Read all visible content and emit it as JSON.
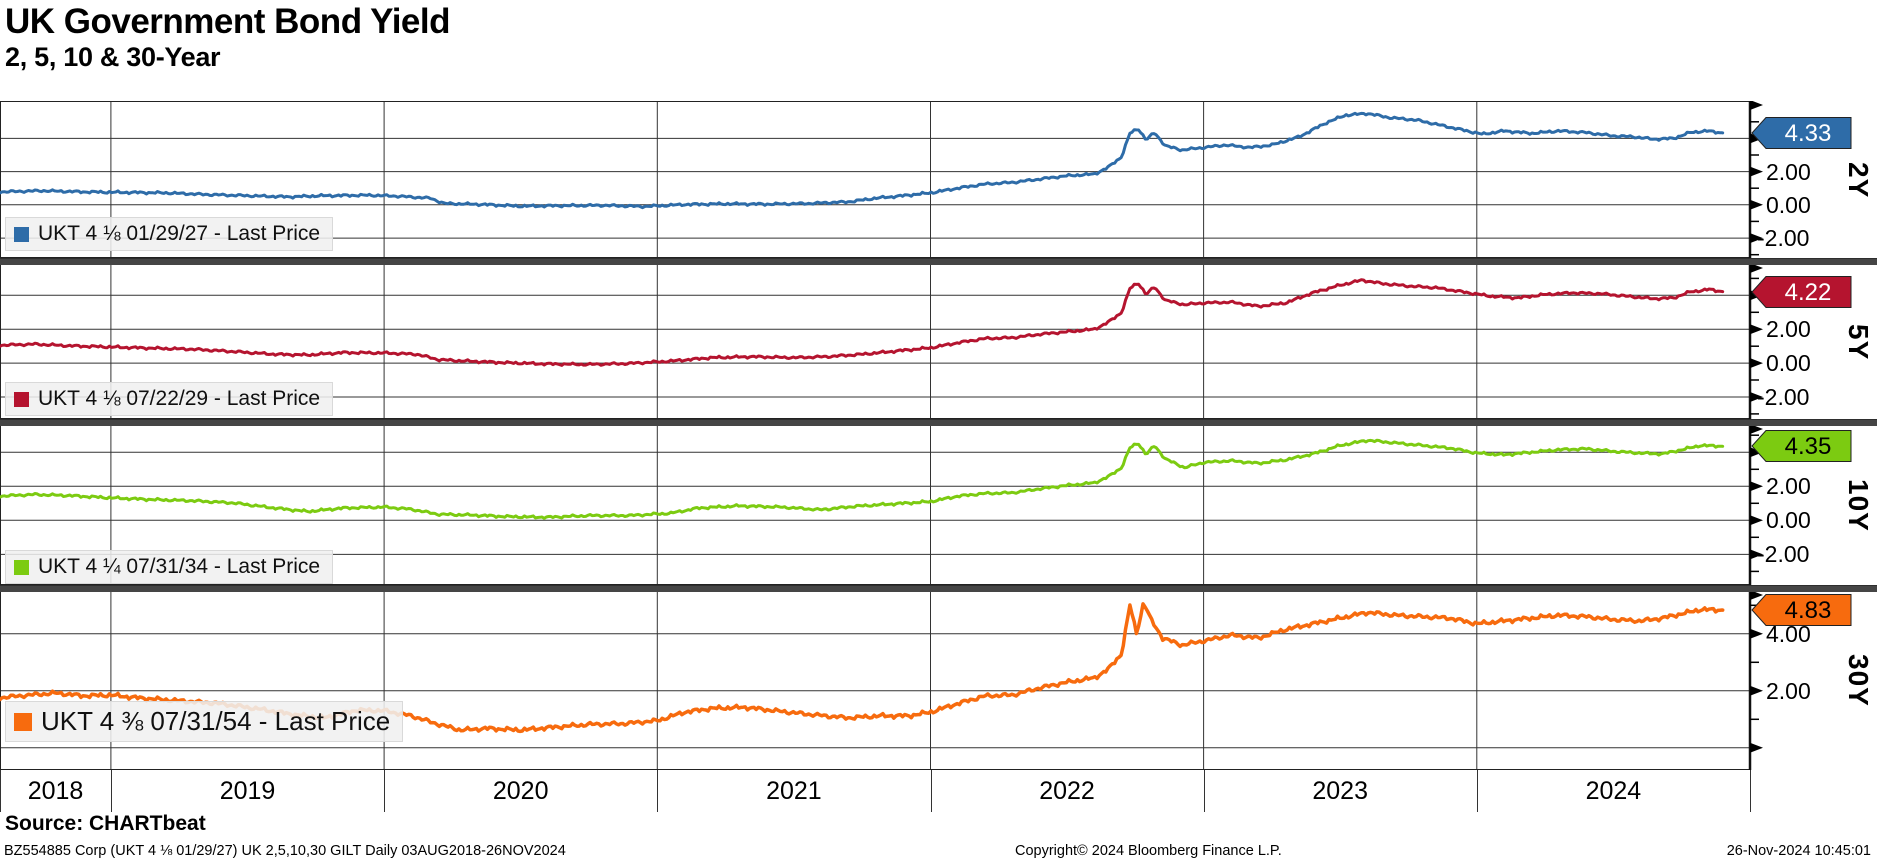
{
  "header": {
    "title": "UK Government Bond Yield",
    "subtitle": "2, 5, 10 & 30-Year"
  },
  "source_line": "Source: CHARTbeat",
  "footer": {
    "left": "BZ554885 Corp (UKT 4 ⅛  01/29/27) UK 2,5,10,30 GILT  Daily 03AUG2018-26NOV2024",
    "center": "Copyright© 2024 Bloomberg Finance L.P.",
    "right": "26-Nov-2024 10:45:01"
  },
  "chart_data": {
    "type": "line",
    "title": "UK Government Bond Yield",
    "subtitle": "2, 5, 10 & 30-Year",
    "x_axis": {
      "year_labels": [
        "2018",
        "2019",
        "2020",
        "2021",
        "2022",
        "2023",
        "2024"
      ],
      "gridline_years": [
        2019,
        2020,
        2021,
        2022,
        2023,
        2024
      ],
      "range_start": 2018.594,
      "range_end": 2025.0,
      "data_range_label": "03AUG2018-26NOV2024"
    },
    "grid": true,
    "legend_position": "bottom-left-in-panel",
    "panels": [
      {
        "name": "2y",
        "axis_title": "2Y",
        "legend_label": "UKT 4 ⅛  01/29/27 - Last Price",
        "last_price": 4.33,
        "badge_label": "4.33",
        "color": "#2e6ca8",
        "badge_text_color": "#ffffff",
        "ylim": [
          -3.2,
          6.25
        ],
        "gridlines": [
          4,
          2,
          0,
          -2
        ],
        "tick_labels": [
          {
            "v": 2,
            "label": "2.00"
          },
          {
            "v": 0,
            "label": "0.00"
          },
          {
            "v": -2,
            "label": "-2.00"
          }
        ],
        "minor_ticks": [
          5,
          3,
          1,
          -1,
          -3
        ],
        "points": [
          [
            2018.59,
            0.78
          ],
          [
            2018.75,
            0.85
          ],
          [
            2018.9,
            0.78
          ],
          [
            2019.05,
            0.75
          ],
          [
            2019.2,
            0.72
          ],
          [
            2019.35,
            0.62
          ],
          [
            2019.5,
            0.55
          ],
          [
            2019.65,
            0.48
          ],
          [
            2019.78,
            0.55
          ],
          [
            2019.95,
            0.58
          ],
          [
            2020.05,
            0.52
          ],
          [
            2020.17,
            0.4
          ],
          [
            2020.22,
            0.08
          ],
          [
            2020.35,
            0.03
          ],
          [
            2020.5,
            -0.08
          ],
          [
            2020.65,
            -0.05
          ],
          [
            2020.8,
            -0.03
          ],
          [
            2020.95,
            -0.1
          ],
          [
            2021.1,
            0.02
          ],
          [
            2021.25,
            0.06
          ],
          [
            2021.4,
            0.04
          ],
          [
            2021.55,
            0.08
          ],
          [
            2021.7,
            0.18
          ],
          [
            2021.8,
            0.4
          ],
          [
            2021.9,
            0.55
          ],
          [
            2022.0,
            0.72
          ],
          [
            2022.1,
            1.0
          ],
          [
            2022.2,
            1.25
          ],
          [
            2022.3,
            1.35
          ],
          [
            2022.4,
            1.55
          ],
          [
            2022.5,
            1.75
          ],
          [
            2022.6,
            1.85
          ],
          [
            2022.65,
            2.25
          ],
          [
            2022.7,
            2.9
          ],
          [
            2022.73,
            4.3
          ],
          [
            2022.76,
            4.6
          ],
          [
            2022.79,
            3.9
          ],
          [
            2022.82,
            4.35
          ],
          [
            2022.86,
            3.55
          ],
          [
            2022.92,
            3.3
          ],
          [
            2023.0,
            3.45
          ],
          [
            2023.08,
            3.6
          ],
          [
            2023.17,
            3.45
          ],
          [
            2023.25,
            3.6
          ],
          [
            2023.35,
            4.1
          ],
          [
            2023.45,
            4.95
          ],
          [
            2023.52,
            5.4
          ],
          [
            2023.6,
            5.5
          ],
          [
            2023.68,
            5.25
          ],
          [
            2023.78,
            5.1
          ],
          [
            2023.88,
            4.75
          ],
          [
            2023.95,
            4.5
          ],
          [
            2024.02,
            4.25
          ],
          [
            2024.1,
            4.45
          ],
          [
            2024.2,
            4.3
          ],
          [
            2024.3,
            4.45
          ],
          [
            2024.4,
            4.35
          ],
          [
            2024.5,
            4.15
          ],
          [
            2024.57,
            4.1
          ],
          [
            2024.65,
            3.95
          ],
          [
            2024.72,
            4.0
          ],
          [
            2024.78,
            4.35
          ],
          [
            2024.84,
            4.45
          ],
          [
            2024.9,
            4.33
          ]
        ]
      },
      {
        "name": "5y",
        "axis_title": "5Y",
        "legend_label": "UKT 4 ⅛  07/22/29 - Last Price",
        "last_price": 4.22,
        "badge_label": "4.22",
        "color": "#b5142f",
        "badge_text_color": "#ffffff",
        "ylim": [
          -3.3,
          5.85
        ],
        "gridlines": [
          4,
          2,
          0,
          -2
        ],
        "tick_labels": [
          {
            "v": 2,
            "label": "2.00"
          },
          {
            "v": 0,
            "label": "0.00"
          },
          {
            "v": -2,
            "label": "-2.00"
          }
        ],
        "minor_ticks": [
          5,
          3,
          1,
          -1,
          -3
        ],
        "points": [
          [
            2018.59,
            1.05
          ],
          [
            2018.72,
            1.12
          ],
          [
            2018.85,
            1.02
          ],
          [
            2019.0,
            0.95
          ],
          [
            2019.15,
            0.88
          ],
          [
            2019.3,
            0.82
          ],
          [
            2019.45,
            0.68
          ],
          [
            2019.6,
            0.52
          ],
          [
            2019.72,
            0.48
          ],
          [
            2019.85,
            0.62
          ],
          [
            2020.0,
            0.6
          ],
          [
            2020.12,
            0.52
          ],
          [
            2020.2,
            0.2
          ],
          [
            2020.3,
            0.12
          ],
          [
            2020.45,
            0.02
          ],
          [
            2020.6,
            -0.05
          ],
          [
            2020.75,
            -0.08
          ],
          [
            2020.9,
            -0.02
          ],
          [
            2021.05,
            0.12
          ],
          [
            2021.2,
            0.32
          ],
          [
            2021.35,
            0.38
          ],
          [
            2021.5,
            0.32
          ],
          [
            2021.62,
            0.38
          ],
          [
            2021.75,
            0.52
          ],
          [
            2021.88,
            0.72
          ],
          [
            2022.0,
            0.9
          ],
          [
            2022.1,
            1.2
          ],
          [
            2022.2,
            1.45
          ],
          [
            2022.3,
            1.5
          ],
          [
            2022.4,
            1.7
          ],
          [
            2022.5,
            1.85
          ],
          [
            2022.6,
            2.0
          ],
          [
            2022.65,
            2.4
          ],
          [
            2022.7,
            3.0
          ],
          [
            2022.73,
            4.4
          ],
          [
            2022.76,
            4.75
          ],
          [
            2022.79,
            4.05
          ],
          [
            2022.82,
            4.5
          ],
          [
            2022.86,
            3.7
          ],
          [
            2022.93,
            3.45
          ],
          [
            2023.0,
            3.55
          ],
          [
            2023.1,
            3.6
          ],
          [
            2023.2,
            3.35
          ],
          [
            2023.3,
            3.55
          ],
          [
            2023.4,
            4.15
          ],
          [
            2023.5,
            4.6
          ],
          [
            2023.58,
            4.9
          ],
          [
            2023.65,
            4.7
          ],
          [
            2023.75,
            4.55
          ],
          [
            2023.85,
            4.45
          ],
          [
            2023.95,
            4.2
          ],
          [
            2024.05,
            3.95
          ],
          [
            2024.15,
            3.85
          ],
          [
            2024.25,
            4.05
          ],
          [
            2024.35,
            4.15
          ],
          [
            2024.45,
            4.1
          ],
          [
            2024.55,
            3.95
          ],
          [
            2024.65,
            3.8
          ],
          [
            2024.72,
            3.85
          ],
          [
            2024.78,
            4.2
          ],
          [
            2024.85,
            4.35
          ],
          [
            2024.9,
            4.22
          ]
        ]
      },
      {
        "name": "10y",
        "axis_title": "10Y",
        "legend_label": "UKT 4 ¼  07/31/34 - Last Price",
        "last_price": 4.35,
        "badge_label": "4.35",
        "color": "#7ccb11",
        "badge_text_color": "#000000",
        "ylim": [
          -3.8,
          5.6
        ],
        "gridlines": [
          4,
          2,
          0,
          -2
        ],
        "tick_labels": [
          {
            "v": 2,
            "label": "2.00"
          },
          {
            "v": 0,
            "label": "0.00"
          },
          {
            "v": -2,
            "label": "-2.00"
          }
        ],
        "minor_ticks": [
          5,
          3,
          1,
          -1,
          -3
        ],
        "points": [
          [
            2018.59,
            1.42
          ],
          [
            2018.72,
            1.52
          ],
          [
            2018.85,
            1.45
          ],
          [
            2019.0,
            1.32
          ],
          [
            2019.15,
            1.22
          ],
          [
            2019.3,
            1.15
          ],
          [
            2019.45,
            1.02
          ],
          [
            2019.6,
            0.72
          ],
          [
            2019.72,
            0.52
          ],
          [
            2019.85,
            0.72
          ],
          [
            2020.0,
            0.78
          ],
          [
            2020.1,
            0.65
          ],
          [
            2020.2,
            0.35
          ],
          [
            2020.3,
            0.32
          ],
          [
            2020.45,
            0.22
          ],
          [
            2020.6,
            0.18
          ],
          [
            2020.75,
            0.28
          ],
          [
            2020.9,
            0.28
          ],
          [
            2021.05,
            0.42
          ],
          [
            2021.15,
            0.72
          ],
          [
            2021.3,
            0.85
          ],
          [
            2021.45,
            0.78
          ],
          [
            2021.6,
            0.62
          ],
          [
            2021.72,
            0.82
          ],
          [
            2021.85,
            0.95
          ],
          [
            2022.0,
            1.1
          ],
          [
            2022.1,
            1.42
          ],
          [
            2022.2,
            1.58
          ],
          [
            2022.3,
            1.62
          ],
          [
            2022.4,
            1.85
          ],
          [
            2022.5,
            2.05
          ],
          [
            2022.6,
            2.2
          ],
          [
            2022.65,
            2.55
          ],
          [
            2022.7,
            3.1
          ],
          [
            2022.73,
            4.25
          ],
          [
            2022.76,
            4.55
          ],
          [
            2022.79,
            3.85
          ],
          [
            2022.82,
            4.4
          ],
          [
            2022.86,
            3.6
          ],
          [
            2022.93,
            3.1
          ],
          [
            2023.0,
            3.4
          ],
          [
            2023.1,
            3.5
          ],
          [
            2023.2,
            3.35
          ],
          [
            2023.3,
            3.55
          ],
          [
            2023.4,
            3.9
          ],
          [
            2023.5,
            4.4
          ],
          [
            2023.6,
            4.7
          ],
          [
            2023.7,
            4.55
          ],
          [
            2023.8,
            4.4
          ],
          [
            2023.9,
            4.25
          ],
          [
            2024.0,
            3.95
          ],
          [
            2024.1,
            3.85
          ],
          [
            2024.2,
            4.0
          ],
          [
            2024.3,
            4.15
          ],
          [
            2024.4,
            4.2
          ],
          [
            2024.5,
            4.05
          ],
          [
            2024.6,
            3.95
          ],
          [
            2024.68,
            3.9
          ],
          [
            2024.75,
            4.15
          ],
          [
            2024.82,
            4.4
          ],
          [
            2024.9,
            4.35
          ]
        ]
      },
      {
        "name": "30y",
        "axis_title": "30Y",
        "legend_label": "UKT 4 ⅜  07/31/54 - Last Price",
        "last_price": 4.83,
        "badge_label": "4.83",
        "color": "#f76b0e",
        "badge_text_color": "#000000",
        "ylim": [
          -0.78,
          5.5
        ],
        "gridlines": [
          4,
          2,
          0
        ],
        "tick_labels": [
          {
            "v": 4,
            "label": "4.00"
          },
          {
            "v": 2,
            "label": "2.00"
          }
        ],
        "minor_ticks": [
          5,
          3,
          1
        ],
        "points": [
          [
            2018.59,
            1.75
          ],
          [
            2018.7,
            1.85
          ],
          [
            2018.8,
            1.92
          ],
          [
            2018.9,
            1.82
          ],
          [
            2019.0,
            1.85
          ],
          [
            2019.1,
            1.75
          ],
          [
            2019.25,
            1.65
          ],
          [
            2019.4,
            1.55
          ],
          [
            2019.55,
            1.35
          ],
          [
            2019.68,
            1.15
          ],
          [
            2019.78,
            1.05
          ],
          [
            2019.9,
            1.32
          ],
          [
            2020.0,
            1.3
          ],
          [
            2020.1,
            1.12
          ],
          [
            2020.2,
            0.82
          ],
          [
            2020.28,
            0.62
          ],
          [
            2020.38,
            0.68
          ],
          [
            2020.5,
            0.62
          ],
          [
            2020.62,
            0.72
          ],
          [
            2020.75,
            0.82
          ],
          [
            2020.88,
            0.85
          ],
          [
            2021.0,
            0.95
          ],
          [
            2021.1,
            1.25
          ],
          [
            2021.2,
            1.38
          ],
          [
            2021.32,
            1.42
          ],
          [
            2021.45,
            1.28
          ],
          [
            2021.58,
            1.15
          ],
          [
            2021.7,
            1.05
          ],
          [
            2021.82,
            1.12
          ],
          [
            2021.92,
            1.12
          ],
          [
            2022.0,
            1.25
          ],
          [
            2022.1,
            1.55
          ],
          [
            2022.2,
            1.82
          ],
          [
            2022.3,
            1.85
          ],
          [
            2022.4,
            2.1
          ],
          [
            2022.5,
            2.3
          ],
          [
            2022.6,
            2.45
          ],
          [
            2022.65,
            2.75
          ],
          [
            2022.7,
            3.3
          ],
          [
            2022.73,
            5.0
          ],
          [
            2022.755,
            4.0
          ],
          [
            2022.78,
            5.1
          ],
          [
            2022.81,
            4.45
          ],
          [
            2022.85,
            3.85
          ],
          [
            2022.92,
            3.6
          ],
          [
            2023.0,
            3.75
          ],
          [
            2023.1,
            3.95
          ],
          [
            2023.2,
            3.85
          ],
          [
            2023.3,
            4.15
          ],
          [
            2023.4,
            4.35
          ],
          [
            2023.5,
            4.55
          ],
          [
            2023.6,
            4.75
          ],
          [
            2023.7,
            4.65
          ],
          [
            2023.8,
            4.6
          ],
          [
            2023.9,
            4.55
          ],
          [
            2024.0,
            4.35
          ],
          [
            2024.1,
            4.45
          ],
          [
            2024.2,
            4.55
          ],
          [
            2024.3,
            4.65
          ],
          [
            2024.4,
            4.6
          ],
          [
            2024.5,
            4.5
          ],
          [
            2024.6,
            4.45
          ],
          [
            2024.68,
            4.55
          ],
          [
            2024.75,
            4.7
          ],
          [
            2024.82,
            4.85
          ],
          [
            2024.9,
            4.83
          ]
        ]
      }
    ]
  }
}
